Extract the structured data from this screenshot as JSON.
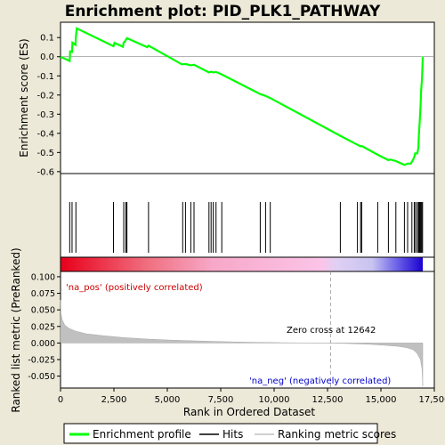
{
  "chart_data": {
    "title": "Enrichment plot: PID_PLK1_PATHWAY",
    "x_label": "Rank in Ordered Dataset",
    "x_range": [
      0,
      17500
    ],
    "x_ticks": [
      0,
      2500,
      5000,
      7500,
      10000,
      12500,
      15000,
      17500
    ],
    "x_tick_labels": [
      "0",
      "2,500",
      "5,000",
      "7,500",
      "10,000",
      "12,500",
      "15,000",
      "17,500"
    ],
    "panels": [
      {
        "type": "line",
        "name": "enrichment",
        "y_label": "Enrichment score (ES)",
        "y_range": [
          -0.61,
          0.18
        ],
        "y_ticks": [
          0.1,
          0.0,
          -0.1,
          -0.2,
          -0.3,
          -0.4,
          -0.5,
          -0.6
        ],
        "y_tick_labels": [
          "0.1",
          "0.0",
          "-0.1",
          "-0.2",
          "-0.3",
          "-0.4",
          "-0.5",
          "-0.6"
        ],
        "series": [
          {
            "name": "Enrichment profile",
            "color": "#00ff00",
            "points": [
              [
                0,
                0.0
              ],
              [
                430,
                -0.022
              ],
              [
                450,
                0.028
              ],
              [
                540,
                0.026
              ],
              [
                560,
                0.073
              ],
              [
                700,
                0.062
              ],
              [
                720,
                0.105
              ],
              [
                760,
                0.148
              ],
              [
                2480,
                0.055
              ],
              [
                2530,
                0.072
              ],
              [
                2920,
                0.052
              ],
              [
                2960,
                0.075
              ],
              [
                3010,
                0.078
              ],
              [
                3060,
                0.088
              ],
              [
                3110,
                0.097
              ],
              [
                4060,
                0.05
              ],
              [
                4120,
                0.058
              ],
              [
                5680,
                -0.04
              ],
              [
                5850,
                -0.038
              ],
              [
                6100,
                -0.045
              ],
              [
                6250,
                -0.042
              ],
              [
                6950,
                -0.082
              ],
              [
                7050,
                -0.078
              ],
              [
                7150,
                -0.082
              ],
              [
                7280,
                -0.08
              ],
              [
                7500,
                -0.09
              ],
              [
                9350,
                -0.195
              ],
              [
                9600,
                -0.205
              ],
              [
                9820,
                -0.216
              ],
              [
                13100,
                -0.413
              ],
              [
                13900,
                -0.46
              ],
              [
                14050,
                -0.468
              ],
              [
                14100,
                -0.466
              ],
              [
                14850,
                -0.512
              ],
              [
                15350,
                -0.54
              ],
              [
                15450,
                -0.537
              ],
              [
                15700,
                -0.545
              ],
              [
                16100,
                -0.565
              ],
              [
                16250,
                -0.558
              ],
              [
                16400,
                -0.558
              ],
              [
                16470,
                -0.545
              ],
              [
                16560,
                -0.525
              ],
              [
                16600,
                -0.505
              ],
              [
                16700,
                -0.505
              ],
              [
                16750,
                -0.48
              ],
              [
                16780,
                -0.405
              ],
              [
                16820,
                -0.33
              ],
              [
                16860,
                -0.25
              ],
              [
                16880,
                -0.18
              ],
              [
                16920,
                -0.12
              ],
              [
                16940,
                -0.06
              ],
              [
                16960,
                0.0
              ]
            ]
          }
        ]
      },
      {
        "type": "hits",
        "name": "hits",
        "series_name": "Hits",
        "positions": [
          430,
          540,
          720,
          2480,
          2960,
          3060,
          3110,
          4120,
          5720,
          5850,
          6100,
          6250,
          6950,
          7050,
          7150,
          7280,
          7550,
          9350,
          9600,
          9820,
          13100,
          13900,
          14050,
          14100,
          14850,
          15350,
          15700,
          16100,
          16250,
          16450,
          16560,
          16620,
          16700,
          16760,
          16790,
          16830,
          16870,
          16910,
          16950
        ]
      },
      {
        "type": "heatmap",
        "name": "rank-colorbar",
        "colors": [
          "#ff0000",
          "#ffffff",
          "#0000ff"
        ]
      },
      {
        "type": "area",
        "name": "ranked-metric",
        "y_label": "Ranked list metric (PreRanked)",
        "y_range": [
          -0.068,
          0.108
        ],
        "y_ticks": [
          0.1,
          0.075,
          0.05,
          0.025,
          0.0,
          -0.025,
          -0.05
        ],
        "y_tick_labels": [
          "0.100",
          "0.075",
          "0.050",
          "0.025",
          "0.000",
          "-0.025",
          "-0.050"
        ],
        "series": [
          {
            "name": "Ranking metric scores",
            "color": "#c0c0c0",
            "points": [
              [
                0,
                0.065
              ],
              [
                20,
                0.045
              ],
              [
                80,
                0.035
              ],
              [
                200,
                0.027
              ],
              [
                400,
                0.022
              ],
              [
                700,
                0.018
              ],
              [
                1200,
                0.014
              ],
              [
                2000,
                0.011
              ],
              [
                3000,
                0.008
              ],
              [
                4000,
                0.006
              ],
              [
                5000,
                0.0045
              ],
              [
                6000,
                0.0035
              ],
              [
                7000,
                0.0025
              ],
              [
                8000,
                0.0017
              ],
              [
                9000,
                0.001
              ],
              [
                10000,
                0.0006
              ],
              [
                11000,
                0.0003
              ],
              [
                12642,
                0.0
              ],
              [
                13500,
                -0.0008
              ],
              [
                14500,
                -0.002
              ],
              [
                15200,
                -0.0035
              ],
              [
                15800,
                -0.005
              ],
              [
                16200,
                -0.007
              ],
              [
                16500,
                -0.01
              ],
              [
                16700,
                -0.016
              ],
              [
                16850,
                -0.025
              ],
              [
                16930,
                -0.04
              ],
              [
                16960,
                -0.065
              ],
              [
                16960,
                0.0
              ]
            ]
          }
        ],
        "annotations": [
          {
            "text": "'na_pos' (positively correlated)",
            "color": "#cc0000"
          },
          {
            "text": "Zero cross at 12642",
            "color": "#000000",
            "x": 12642
          },
          {
            "text": "'na_neg' (negatively correlated)",
            "color": "#0000cc"
          }
        ]
      }
    ],
    "legend": {
      "placement": "bottom",
      "items": [
        {
          "label": "Enrichment profile",
          "color": "#00ff00"
        },
        {
          "label": "Hits",
          "color": "#000000"
        },
        {
          "label": "Ranking metric scores",
          "color": "#c0c0c0"
        }
      ]
    }
  }
}
